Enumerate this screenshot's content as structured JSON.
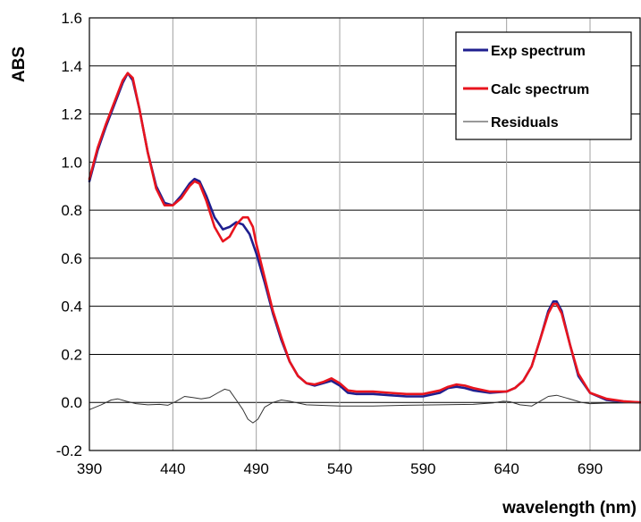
{
  "chart_data": {
    "type": "line",
    "title": "",
    "xlabel": "wavelength (nm)",
    "ylabel": "ABS",
    "xlim": [
      390,
      720
    ],
    "ylim": [
      -0.2,
      1.6
    ],
    "xticks": [
      "390",
      "440",
      "490",
      "540",
      "590",
      "640",
      "690"
    ],
    "yticks": [
      "-0.2",
      "0.0",
      "0.2",
      "0.4",
      "0.6",
      "0.8",
      "1.0",
      "1.2",
      "1.4",
      "1.6"
    ],
    "grid": true,
    "legend_position": "top-right",
    "series": [
      {
        "name": "Exp spectrum",
        "color": "#1f1f8f",
        "points": [
          [
            390,
            0.92
          ],
          [
            395,
            1.05
          ],
          [
            400,
            1.15
          ],
          [
            405,
            1.24
          ],
          [
            410,
            1.33
          ],
          [
            413,
            1.37
          ],
          [
            416,
            1.34
          ],
          [
            420,
            1.22
          ],
          [
            425,
            1.04
          ],
          [
            430,
            0.9
          ],
          [
            435,
            0.83
          ],
          [
            440,
            0.82
          ],
          [
            445,
            0.86
          ],
          [
            450,
            0.91
          ],
          [
            453,
            0.93
          ],
          [
            456,
            0.92
          ],
          [
            460,
            0.86
          ],
          [
            465,
            0.77
          ],
          [
            470,
            0.72
          ],
          [
            474,
            0.73
          ],
          [
            478,
            0.75
          ],
          [
            482,
            0.74
          ],
          [
            486,
            0.7
          ],
          [
            490,
            0.62
          ],
          [
            495,
            0.5
          ],
          [
            500,
            0.37
          ],
          [
            505,
            0.26
          ],
          [
            510,
            0.17
          ],
          [
            515,
            0.11
          ],
          [
            520,
            0.08
          ],
          [
            525,
            0.07
          ],
          [
            530,
            0.08
          ],
          [
            535,
            0.09
          ],
          [
            540,
            0.07
          ],
          [
            545,
            0.04
          ],
          [
            550,
            0.035
          ],
          [
            560,
            0.035
          ],
          [
            570,
            0.03
          ],
          [
            580,
            0.025
          ],
          [
            590,
            0.025
          ],
          [
            600,
            0.04
          ],
          [
            605,
            0.06
          ],
          [
            610,
            0.065
          ],
          [
            615,
            0.06
          ],
          [
            620,
            0.05
          ],
          [
            630,
            0.04
          ],
          [
            640,
            0.045
          ],
          [
            645,
            0.06
          ],
          [
            650,
            0.09
          ],
          [
            655,
            0.15
          ],
          [
            660,
            0.26
          ],
          [
            665,
            0.38
          ],
          [
            668,
            0.42
          ],
          [
            670,
            0.42
          ],
          [
            673,
            0.38
          ],
          [
            678,
            0.24
          ],
          [
            683,
            0.11
          ],
          [
            690,
            0.04
          ],
          [
            700,
            0.01
          ],
          [
            710,
            0.003
          ],
          [
            720,
            0.0
          ]
        ]
      },
      {
        "name": "Calc spectrum",
        "color": "#e8141e",
        "points": [
          [
            390,
            0.93
          ],
          [
            395,
            1.06
          ],
          [
            400,
            1.16
          ],
          [
            405,
            1.25
          ],
          [
            410,
            1.34
          ],
          [
            413,
            1.37
          ],
          [
            416,
            1.35
          ],
          [
            420,
            1.22
          ],
          [
            425,
            1.04
          ],
          [
            430,
            0.89
          ],
          [
            435,
            0.82
          ],
          [
            440,
            0.82
          ],
          [
            445,
            0.85
          ],
          [
            450,
            0.9
          ],
          [
            453,
            0.92
          ],
          [
            456,
            0.91
          ],
          [
            460,
            0.84
          ],
          [
            465,
            0.73
          ],
          [
            470,
            0.67
          ],
          [
            474,
            0.69
          ],
          [
            478,
            0.74
          ],
          [
            482,
            0.77
          ],
          [
            485,
            0.77
          ],
          [
            488,
            0.73
          ],
          [
            490,
            0.66
          ],
          [
            495,
            0.52
          ],
          [
            500,
            0.38
          ],
          [
            505,
            0.27
          ],
          [
            510,
            0.17
          ],
          [
            515,
            0.11
          ],
          [
            520,
            0.08
          ],
          [
            525,
            0.075
          ],
          [
            530,
            0.085
          ],
          [
            535,
            0.1
          ],
          [
            540,
            0.08
          ],
          [
            545,
            0.05
          ],
          [
            550,
            0.045
          ],
          [
            560,
            0.045
          ],
          [
            570,
            0.04
          ],
          [
            580,
            0.035
          ],
          [
            590,
            0.035
          ],
          [
            600,
            0.05
          ],
          [
            605,
            0.065
          ],
          [
            610,
            0.075
          ],
          [
            615,
            0.07
          ],
          [
            620,
            0.06
          ],
          [
            630,
            0.045
          ],
          [
            640,
            0.045
          ],
          [
            645,
            0.06
          ],
          [
            650,
            0.09
          ],
          [
            655,
            0.15
          ],
          [
            660,
            0.26
          ],
          [
            665,
            0.37
          ],
          [
            668,
            0.41
          ],
          [
            670,
            0.41
          ],
          [
            673,
            0.37
          ],
          [
            678,
            0.24
          ],
          [
            683,
            0.12
          ],
          [
            690,
            0.04
          ],
          [
            700,
            0.015
          ],
          [
            710,
            0.005
          ],
          [
            720,
            0.0
          ]
        ]
      },
      {
        "name": "Residuals",
        "color": "#333333",
        "points": [
          [
            390,
            -0.03
          ],
          [
            397,
            -0.01
          ],
          [
            403,
            0.01
          ],
          [
            407,
            0.015
          ],
          [
            412,
            0.005
          ],
          [
            418,
            -0.005
          ],
          [
            425,
            -0.01
          ],
          [
            432,
            -0.008
          ],
          [
            437,
            -0.012
          ],
          [
            442,
            0.005
          ],
          [
            447,
            0.025
          ],
          [
            452,
            0.02
          ],
          [
            457,
            0.015
          ],
          [
            462,
            0.02
          ],
          [
            467,
            0.04
          ],
          [
            471,
            0.055
          ],
          [
            474,
            0.05
          ],
          [
            478,
            0.01
          ],
          [
            482,
            -0.03
          ],
          [
            485,
            -0.07
          ],
          [
            488,
            -0.085
          ],
          [
            491,
            -0.07
          ],
          [
            495,
            -0.02
          ],
          [
            500,
            0.0
          ],
          [
            505,
            0.01
          ],
          [
            510,
            0.005
          ],
          [
            520,
            -0.01
          ],
          [
            540,
            -0.015
          ],
          [
            560,
            -0.015
          ],
          [
            580,
            -0.012
          ],
          [
            600,
            -0.01
          ],
          [
            620,
            -0.008
          ],
          [
            632,
            -0.002
          ],
          [
            638,
            0.005
          ],
          [
            642,
            0.003
          ],
          [
            648,
            -0.01
          ],
          [
            655,
            -0.015
          ],
          [
            660,
            0.005
          ],
          [
            665,
            0.025
          ],
          [
            670,
            0.03
          ],
          [
            675,
            0.02
          ],
          [
            680,
            0.01
          ],
          [
            685,
            0.0
          ],
          [
            690,
            -0.005
          ],
          [
            700,
            -0.003
          ],
          [
            720,
            -0.002
          ]
        ]
      }
    ]
  }
}
